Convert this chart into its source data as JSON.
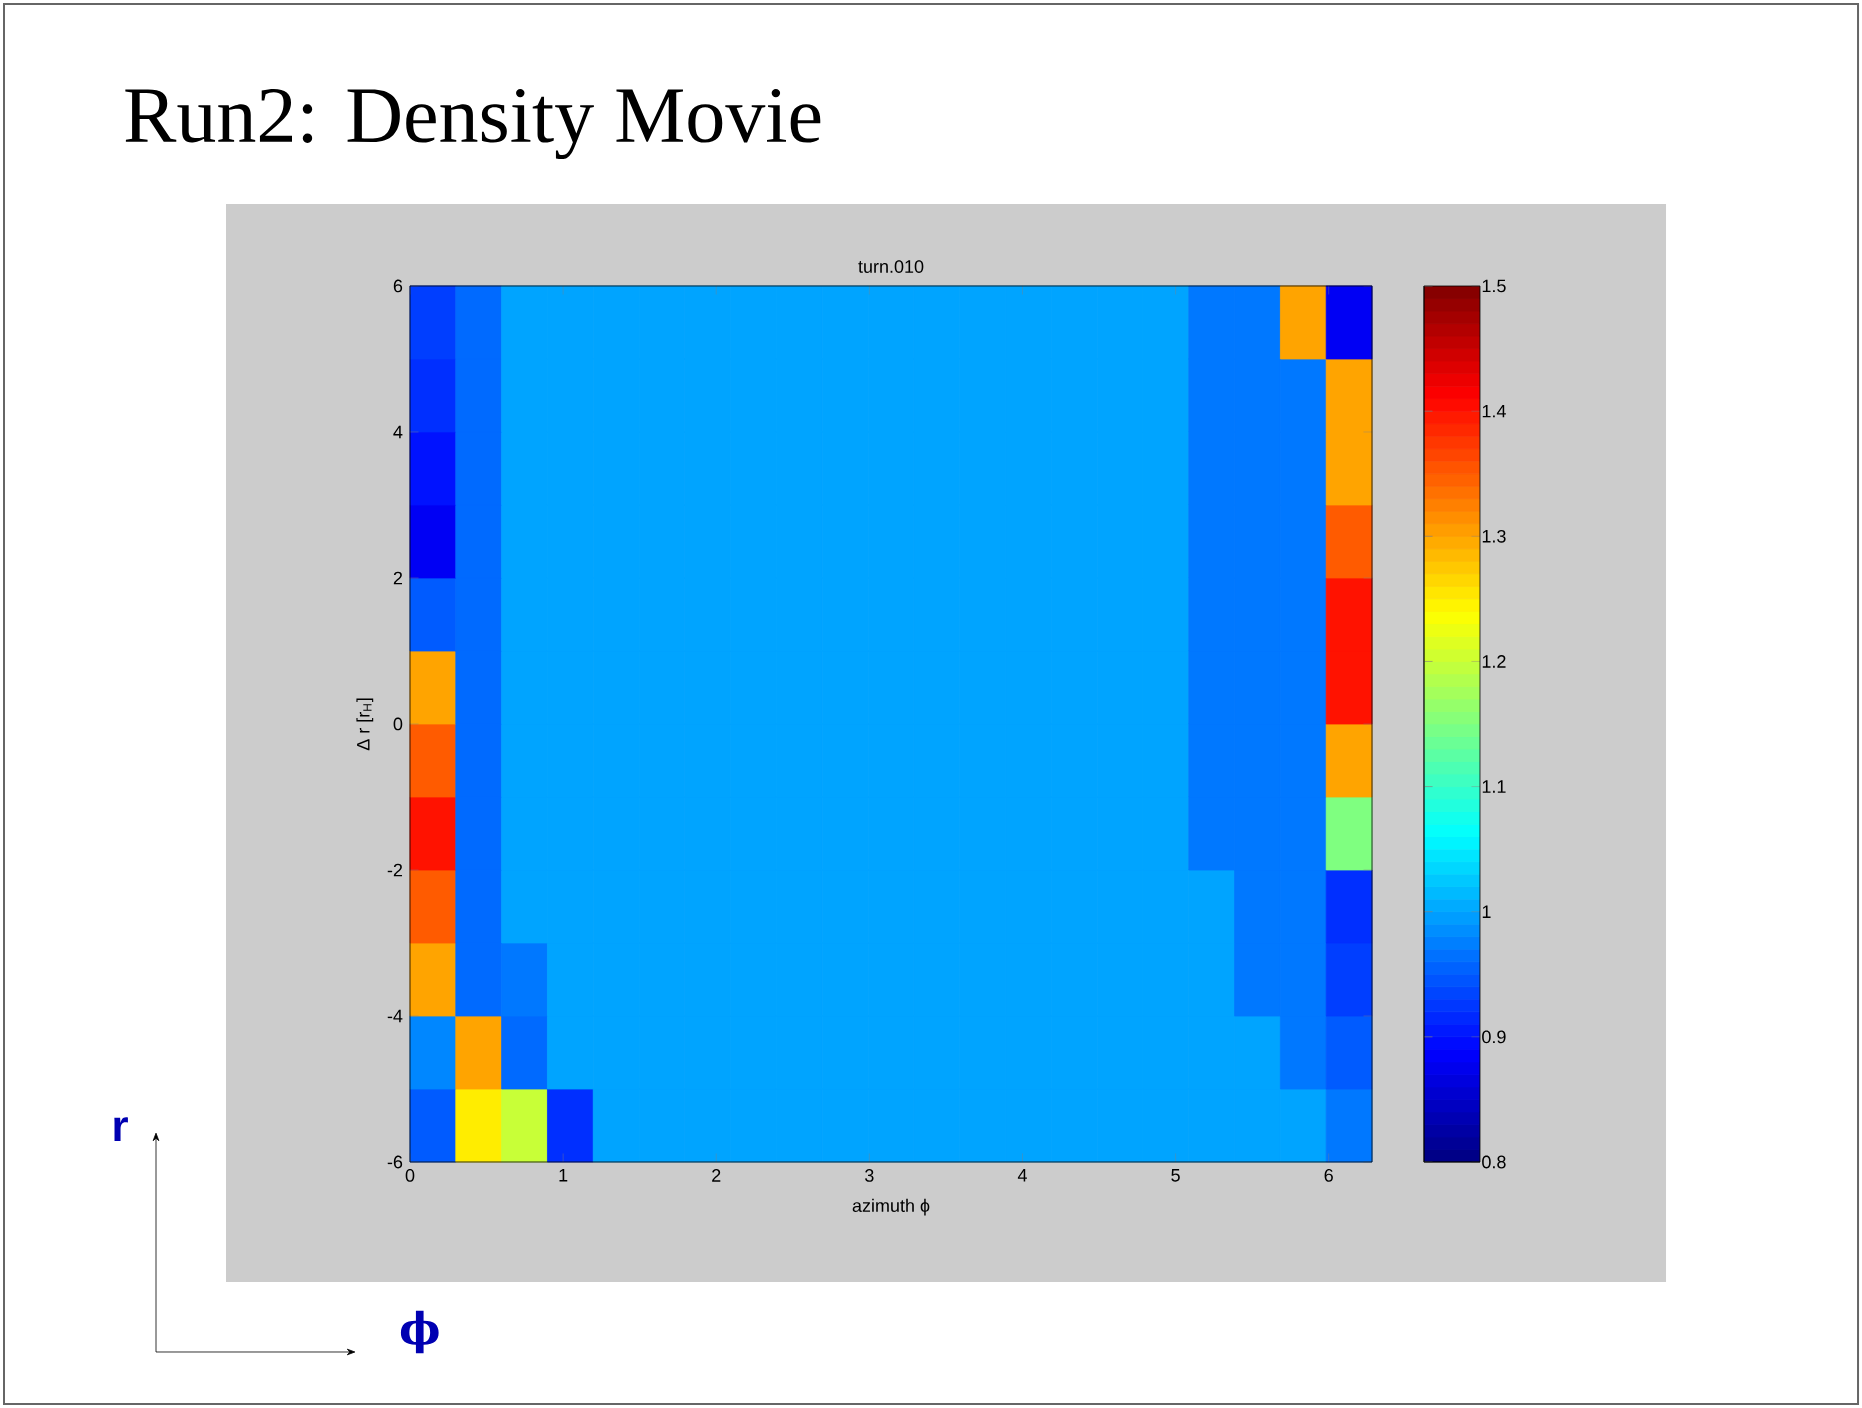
{
  "chart_data": {
    "type": "heatmap",
    "title": "Run2: Density Movie",
    "subtitle": "turn.010",
    "xlabel": "azimuth ϕ",
    "ylabel": "Δ r [r$_{H}$]",
    "annotations": [
      "r",
      "ϕ"
    ],
    "xlim": [
      0,
      6.283
    ],
    "xticks": [
      0,
      1,
      2,
      3,
      4,
      5,
      6
    ],
    "ylim": [
      -6,
      6
    ],
    "yticks": [
      -6,
      -4,
      -2,
      0,
      2,
      4,
      6
    ],
    "clim": [
      0.8,
      1.5
    ],
    "cticks": [
      0.8,
      0.9,
      1,
      1.1,
      1.2,
      1.3,
      1.4,
      1.5
    ],
    "cells": [
      [
        0.93,
        0.96,
        1,
        1,
        1,
        1,
        1,
        1,
        1,
        1,
        1,
        1,
        1,
        1,
        1,
        1,
        1,
        0.97,
        0.97,
        1.3,
        0.88
      ],
      [
        0.92,
        0.96,
        1,
        1,
        1,
        1,
        1,
        1,
        1,
        1,
        1,
        1,
        1,
        1,
        1,
        1,
        1,
        0.97,
        0.97,
        0.97,
        1.3
      ],
      [
        0.9,
        0.96,
        1,
        1,
        1,
        1,
        1,
        1,
        1,
        1,
        1,
        1,
        1,
        1,
        1,
        1,
        1,
        0.97,
        0.97,
        0.97,
        1.3
      ],
      [
        0.88,
        0.96,
        1,
        1,
        1,
        1,
        1,
        1,
        1,
        1,
        1,
        1,
        1,
        1,
        1,
        1,
        1,
        0.97,
        0.97,
        0.97,
        1.35
      ],
      [
        0.95,
        0.96,
        1,
        1,
        1,
        1,
        1,
        1,
        1,
        1,
        1,
        1,
        1,
        1,
        1,
        1,
        1,
        0.97,
        0.97,
        0.97,
        1.4
      ],
      [
        1.3,
        0.96,
        1,
        1,
        1,
        1,
        1,
        1,
        1,
        1,
        1,
        1,
        1,
        1,
        1,
        1,
        1,
        0.97,
        0.97,
        0.97,
        1.4
      ],
      [
        1.35,
        0.96,
        1,
        1,
        1,
        1,
        1,
        1,
        1,
        1,
        1,
        1,
        1,
        1,
        1,
        1,
        1,
        0.97,
        0.97,
        0.97,
        1.3
      ],
      [
        1.4,
        0.96,
        1,
        1,
        1,
        1,
        1,
        1,
        1,
        1,
        1,
        1,
        1,
        1,
        1,
        1,
        1,
        0.97,
        0.97,
        0.97,
        1.15
      ],
      [
        1.35,
        0.96,
        1,
        1,
        1,
        1,
        1,
        1,
        1,
        1,
        1,
        1,
        1,
        1,
        1,
        1,
        1,
        1,
        0.97,
        0.97,
        0.92
      ],
      [
        1.3,
        0.96,
        0.97,
        1,
        1,
        1,
        1,
        1,
        1,
        1,
        1,
        1,
        1,
        1,
        1,
        1,
        1,
        1,
        0.97,
        0.97,
        0.93
      ],
      [
        0.98,
        1.3,
        0.96,
        1,
        1,
        1,
        1,
        1,
        1,
        1,
        1,
        1,
        1,
        1,
        1,
        1,
        1,
        1,
        1,
        0.97,
        0.95
      ],
      [
        0.95,
        1.25,
        1.2,
        0.92,
        1,
        1,
        1,
        1,
        1,
        1,
        1,
        1,
        1,
        1,
        1,
        1,
        1,
        1,
        1,
        1,
        0.97
      ]
    ]
  }
}
